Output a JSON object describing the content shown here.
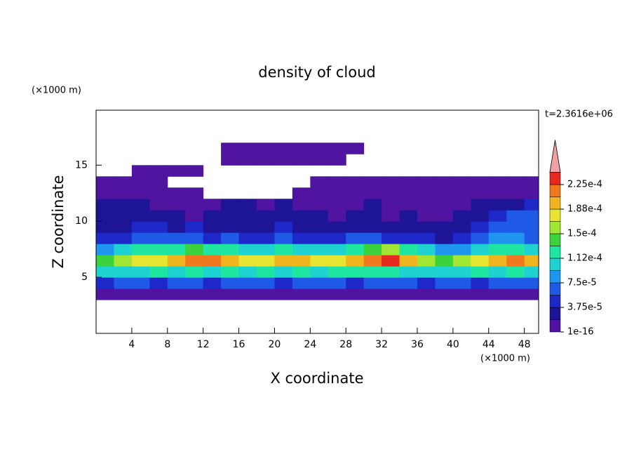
{
  "chart_data": {
    "type": "contour",
    "title": "density of cloud",
    "x_label": "X coordinate",
    "y_label": "Z coordinate",
    "x_unit": "(×1000 m)",
    "y_unit": "(×1000 m)",
    "time_label": "t=2.3616e+06",
    "xlim": [
      0,
      49.6
    ],
    "ylim": [
      0,
      19.9
    ],
    "xticks": [
      4,
      8,
      12,
      16,
      20,
      24,
      28,
      32,
      36,
      40,
      44,
      48
    ],
    "yticks": [
      5,
      10,
      15
    ],
    "x": [
      1,
      3,
      5,
      7,
      9,
      11,
      13,
      15,
      17,
      19,
      21,
      23,
      25,
      27,
      29,
      31,
      33,
      35,
      37,
      39,
      41,
      43,
      45,
      47,
      49
    ],
    "y": [
      3.5,
      4.5,
      5.5,
      6.5,
      7.5,
      8.5,
      9.5,
      10.5,
      11.5,
      12.5,
      13.5,
      14.5,
      15.5,
      16.5
    ],
    "cell_width": 2,
    "cell_height": 1,
    "z": [
      [
        1e-05,
        1e-05,
        1e-05,
        1e-05,
        1e-05,
        1e-05,
        1e-05,
        1e-05,
        1e-05,
        1e-05,
        1e-05,
        1e-05,
        1e-05,
        1e-05,
        1e-05,
        1e-05,
        1e-05,
        1e-05,
        1e-05,
        1e-05,
        1e-05,
        1e-05,
        1e-05,
        1e-05,
        1e-05
      ],
      [
        5e-05,
        6e-05,
        6e-05,
        5e-05,
        6e-05,
        6e-05,
        5e-05,
        6e-05,
        6e-05,
        6e-05,
        5e-05,
        6e-05,
        6e-05,
        6e-05,
        5e-05,
        6e-05,
        6e-05,
        6e-05,
        5e-05,
        6e-05,
        6e-05,
        5e-05,
        6e-05,
        6e-05,
        6e-05
      ],
      [
        0.0001,
        0.00011,
        0.0001,
        0.00012,
        0.00011,
        0.00012,
        0.00011,
        0.00012,
        0.00011,
        0.00012,
        0.00011,
        0.00012,
        0.00011,
        0.00012,
        0.00012,
        0.00013,
        0.00012,
        0.00011,
        0.0001,
        0.00011,
        0.00011,
        0.00012,
        0.00011,
        0.00012,
        0.00011
      ],
      [
        0.00014,
        0.00015,
        0.00017,
        0.00018,
        0.00019,
        0.00021,
        0.00021,
        0.00019,
        0.00017,
        0.00018,
        0.00019,
        0.00019,
        0.00018,
        0.00017,
        0.00019,
        0.00022,
        0.00023,
        0.0002,
        0.00016,
        0.00014,
        0.00015,
        0.00017,
        0.00019,
        0.00021,
        0.00019
      ],
      [
        9e-05,
        0.0001,
        0.00012,
        0.00013,
        0.00012,
        0.00014,
        0.00013,
        0.00012,
        0.00011,
        0.00011,
        0.00012,
        0.00011,
        0.0001,
        0.00011,
        0.00012,
        0.00014,
        0.00015,
        0.00013,
        0.0001,
        8e-05,
        9e-05,
        0.00011,
        0.00013,
        0.00012,
        0.00011
      ],
      [
        4e-05,
        5e-05,
        6e-05,
        7e-05,
        6e-05,
        6e-05,
        5e-05,
        6e-05,
        5e-05,
        5e-05,
        6e-05,
        5e-05,
        4e-05,
        5e-05,
        6e-05,
        6e-05,
        5e-05,
        4e-05,
        4e-05,
        3e-05,
        4e-05,
        6e-05,
        8e-05,
        9e-05,
        7e-05
      ],
      [
        3e-05,
        3e-05,
        4e-05,
        4e-05,
        3e-05,
        4e-05,
        3e-05,
        3e-05,
        2e-05,
        3e-05,
        4e-05,
        3e-05,
        3e-05,
        2e-05,
        3e-05,
        3e-05,
        2e-05,
        2e-05,
        2e-05,
        2e-05,
        3e-05,
        4e-05,
        6e-05,
        7e-05,
        6e-05
      ],
      [
        2.5e-05,
        3e-05,
        2.5e-05,
        2e-05,
        2e-05,
        1e-05,
        2e-05,
        2.5e-05,
        2e-05,
        2e-05,
        2.5e-05,
        2e-05,
        2e-05,
        1e-05,
        2e-05,
        2e-05,
        1e-05,
        2e-05,
        1e-05,
        1e-05,
        2e-05,
        3e-05,
        4e-05,
        6e-05,
        7e-05
      ],
      [
        2e-05,
        2.5e-05,
        2e-05,
        1e-05,
        1e-05,
        1e-05,
        1e-05,
        2e-05,
        2e-05,
        1e-05,
        2e-05,
        1e-05,
        1e-05,
        1e-05,
        1e-05,
        2e-05,
        1e-05,
        1e-05,
        1e-05,
        1e-05,
        1e-05,
        2e-05,
        2e-05,
        3e-05,
        4e-05
      ],
      [
        1e-05,
        1e-05,
        1e-05,
        1e-05,
        1e-05,
        1e-05,
        null,
        null,
        null,
        null,
        null,
        1e-05,
        1e-05,
        1e-05,
        1e-05,
        1e-05,
        1e-05,
        1e-05,
        1e-05,
        1e-05,
        1e-05,
        1e-05,
        1e-05,
        1e-05,
        1e-05
      ],
      [
        1e-05,
        1e-05,
        1e-05,
        1e-05,
        null,
        null,
        null,
        null,
        null,
        null,
        null,
        null,
        1e-05,
        1e-05,
        1e-05,
        1e-05,
        1e-05,
        1e-05,
        1e-05,
        1e-05,
        1e-05,
        1e-05,
        1e-05,
        1e-05,
        1e-05
      ],
      [
        null,
        null,
        1e-05,
        1e-05,
        1e-05,
        1e-05,
        null,
        null,
        null,
        null,
        null,
        null,
        null,
        null,
        null,
        null,
        null,
        null,
        null,
        null,
        null,
        null,
        null,
        null,
        null
      ],
      [
        null,
        null,
        null,
        null,
        null,
        null,
        null,
        1e-05,
        1e-05,
        1e-05,
        1e-05,
        1e-05,
        1e-05,
        1e-05,
        null,
        null,
        null,
        null,
        null,
        null,
        null,
        null,
        null,
        null,
        null
      ],
      [
        null,
        null,
        null,
        null,
        null,
        null,
        null,
        1e-05,
        1e-05,
        1e-05,
        1e-05,
        1e-05,
        1e-05,
        1e-05,
        1e-05,
        null,
        null,
        null,
        null,
        null,
        null,
        null,
        null,
        null,
        null
      ]
    ],
    "colorbar": {
      "levels": [
        1e-16,
        1.875e-05,
        3.75e-05,
        5.625e-05,
        7.5e-05,
        9.375e-05,
        0.0001125,
        0.00013125,
        0.00015,
        0.00016875,
        0.0001875,
        0.00020625,
        0.000225,
        0.00024375
      ],
      "colors": [
        "#5014a0",
        "#1e1496",
        "#1e28c8",
        "#1e5ae6",
        "#1e96f0",
        "#1ed2d2",
        "#1ee6a0",
        "#3cd23c",
        "#a0e632",
        "#e6e632",
        "#f0b41e",
        "#f0781e",
        "#e6281e"
      ],
      "over_color": "#f0a0a0",
      "ticks": [
        1e-16,
        {
          "value": 3.75e-05,
          "label": "3.75e-5"
        },
        {
          "value": 7.5e-05,
          "label": "7.5e-5"
        },
        {
          "value": 0.0001125,
          "label": "1.12e-4"
        },
        {
          "value": 0.00015,
          "label": "1.5e-4"
        },
        {
          "value": 0.0001875,
          "label": "1.88e-4"
        },
        {
          "value": 0.000225,
          "label": "2.25e-4"
        }
      ]
    }
  }
}
